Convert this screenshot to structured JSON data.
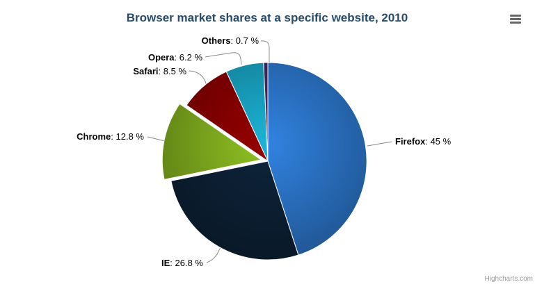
{
  "chart_data": {
    "type": "pie",
    "title": "Browser market shares at a specific website, 2010",
    "unit": "%",
    "legend": "off",
    "label_format": "name: value %",
    "slices": [
      {
        "label": "Firefox",
        "value": 45,
        "display_value": "45 %",
        "color": "#2f7ed8",
        "sliced": false
      },
      {
        "label": "IE",
        "value": 26.8,
        "display_value": "26.8 %",
        "color": "#0d233a",
        "sliced": false
      },
      {
        "label": "Chrome",
        "value": 12.8,
        "display_value": "12.8 %",
        "color": "#8bbc21",
        "sliced": true
      },
      {
        "label": "Safari",
        "value": 8.5,
        "display_value": "8.5 %",
        "color": "#910000",
        "sliced": false
      },
      {
        "label": "Opera",
        "value": 6.2,
        "display_value": "6.2 %",
        "color": "#1aadce",
        "sliced": false
      },
      {
        "label": "Others",
        "value": 0.7,
        "display_value": "0.7 %",
        "color": "#492970",
        "sliced": false
      }
    ]
  },
  "header": {
    "menu_icon": "hamburger-menu"
  },
  "credits": {
    "text": "Highcharts.com"
  }
}
